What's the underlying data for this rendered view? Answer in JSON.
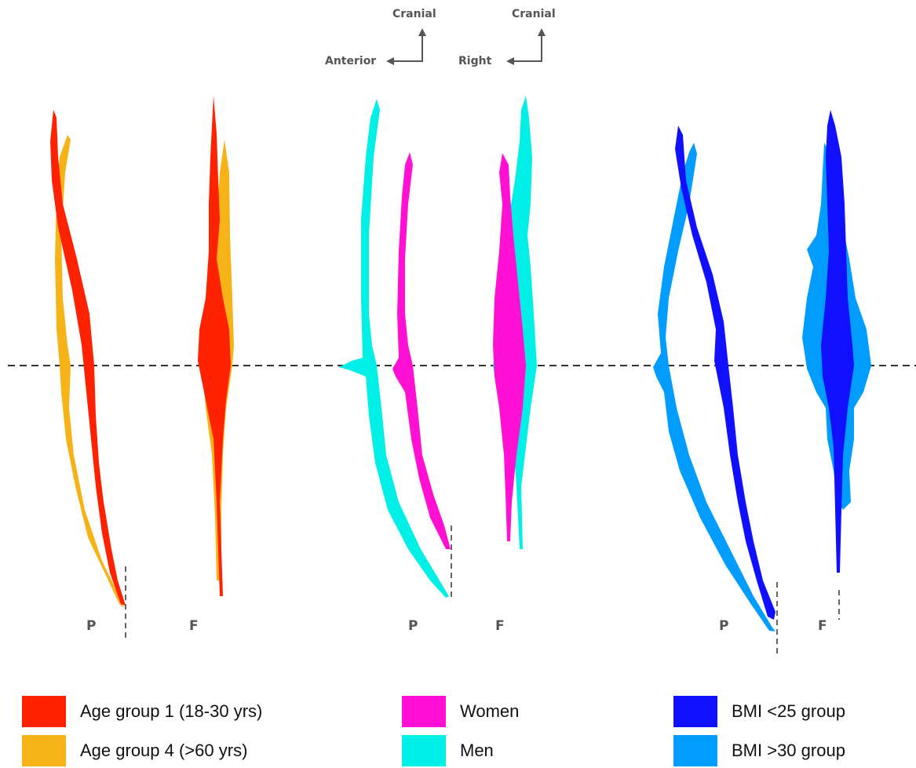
{
  "orientation": {
    "left": {
      "up": "Cranial",
      "side": "Anterior"
    },
    "right": {
      "up": "Cranial",
      "side": "Right"
    }
  },
  "panels": [
    {
      "name": "age",
      "views": [
        "P",
        "F"
      ],
      "groups": [
        {
          "label": "Age group 1 (18-30 yrs)",
          "color": "#ff2200"
        },
        {
          "label": "Age group 4 (>60 yrs)",
          "color": "#f5b317"
        }
      ]
    },
    {
      "name": "sex",
      "views": [
        "P",
        "F"
      ],
      "groups": [
        {
          "label": "Women",
          "color": "#ff10d2"
        },
        {
          "label": "Men",
          "color": "#00f0e8"
        }
      ]
    },
    {
      "name": "bmi",
      "views": [
        "P",
        "F"
      ],
      "groups": [
        {
          "label": "BMI <25 group",
          "color": "#1010ff"
        },
        {
          "label": "BMI >30 group",
          "color": "#009cff"
        }
      ]
    }
  ]
}
